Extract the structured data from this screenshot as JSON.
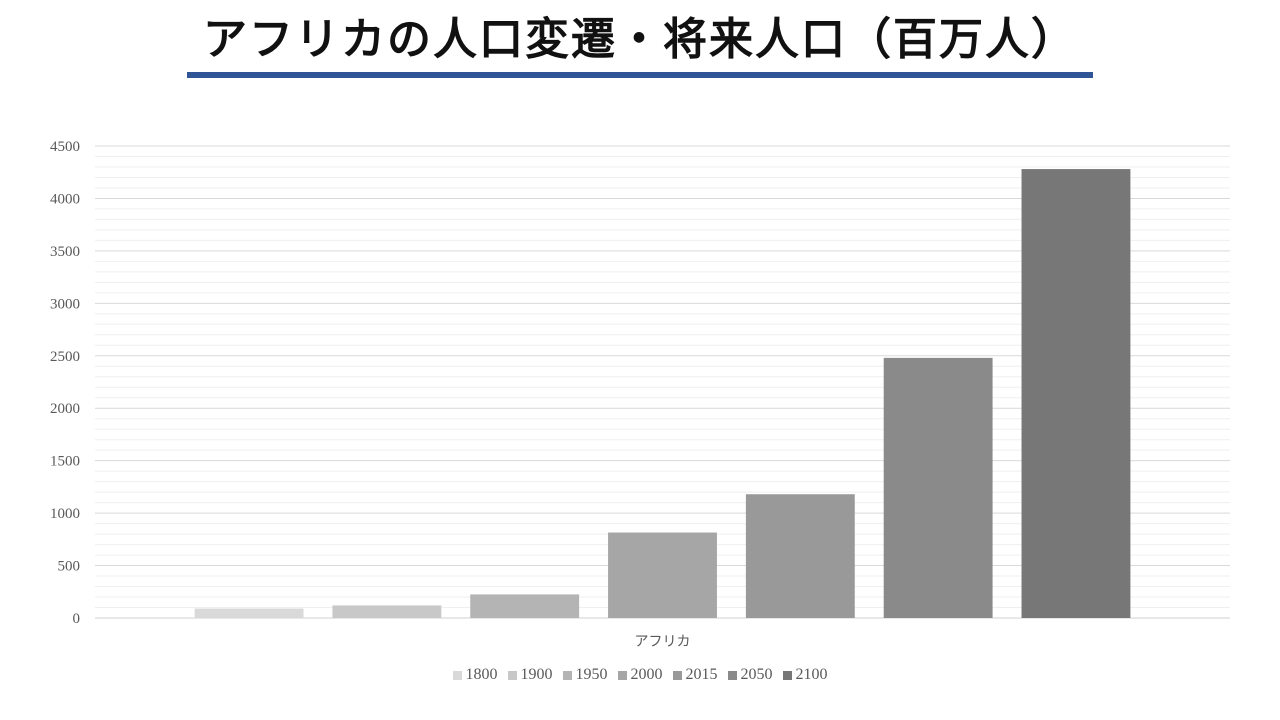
{
  "title": "アフリカの人口変遷・将来人口（百万人）",
  "accent_color": "#2f5597",
  "chart_data": {
    "type": "bar",
    "categories": [
      "アフリカ"
    ],
    "series": [
      {
        "name": "1800",
        "values": [
          90
        ],
        "color": "#d9d9d9"
      },
      {
        "name": "1900",
        "values": [
          120
        ],
        "color": "#c8c8c8"
      },
      {
        "name": "1950",
        "values": [
          225
        ],
        "color": "#b4b4b4"
      },
      {
        "name": "2000",
        "values": [
          815
        ],
        "color": "#a6a6a6"
      },
      {
        "name": "2015",
        "values": [
          1180
        ],
        "color": "#999999"
      },
      {
        "name": "2050",
        "values": [
          2480
        ],
        "color": "#8a8a8a"
      },
      {
        "name": "2100",
        "values": [
          4280
        ],
        "color": "#777777"
      }
    ],
    "yticks": [
      "0",
      "500",
      "1000",
      "1500",
      "2000",
      "2500",
      "3000",
      "3500",
      "4000",
      "4500"
    ],
    "ylim": [
      0,
      4500
    ],
    "grid": true,
    "minor_grid": true,
    "legend": "bottom",
    "xlabel": "",
    "ylabel": ""
  }
}
